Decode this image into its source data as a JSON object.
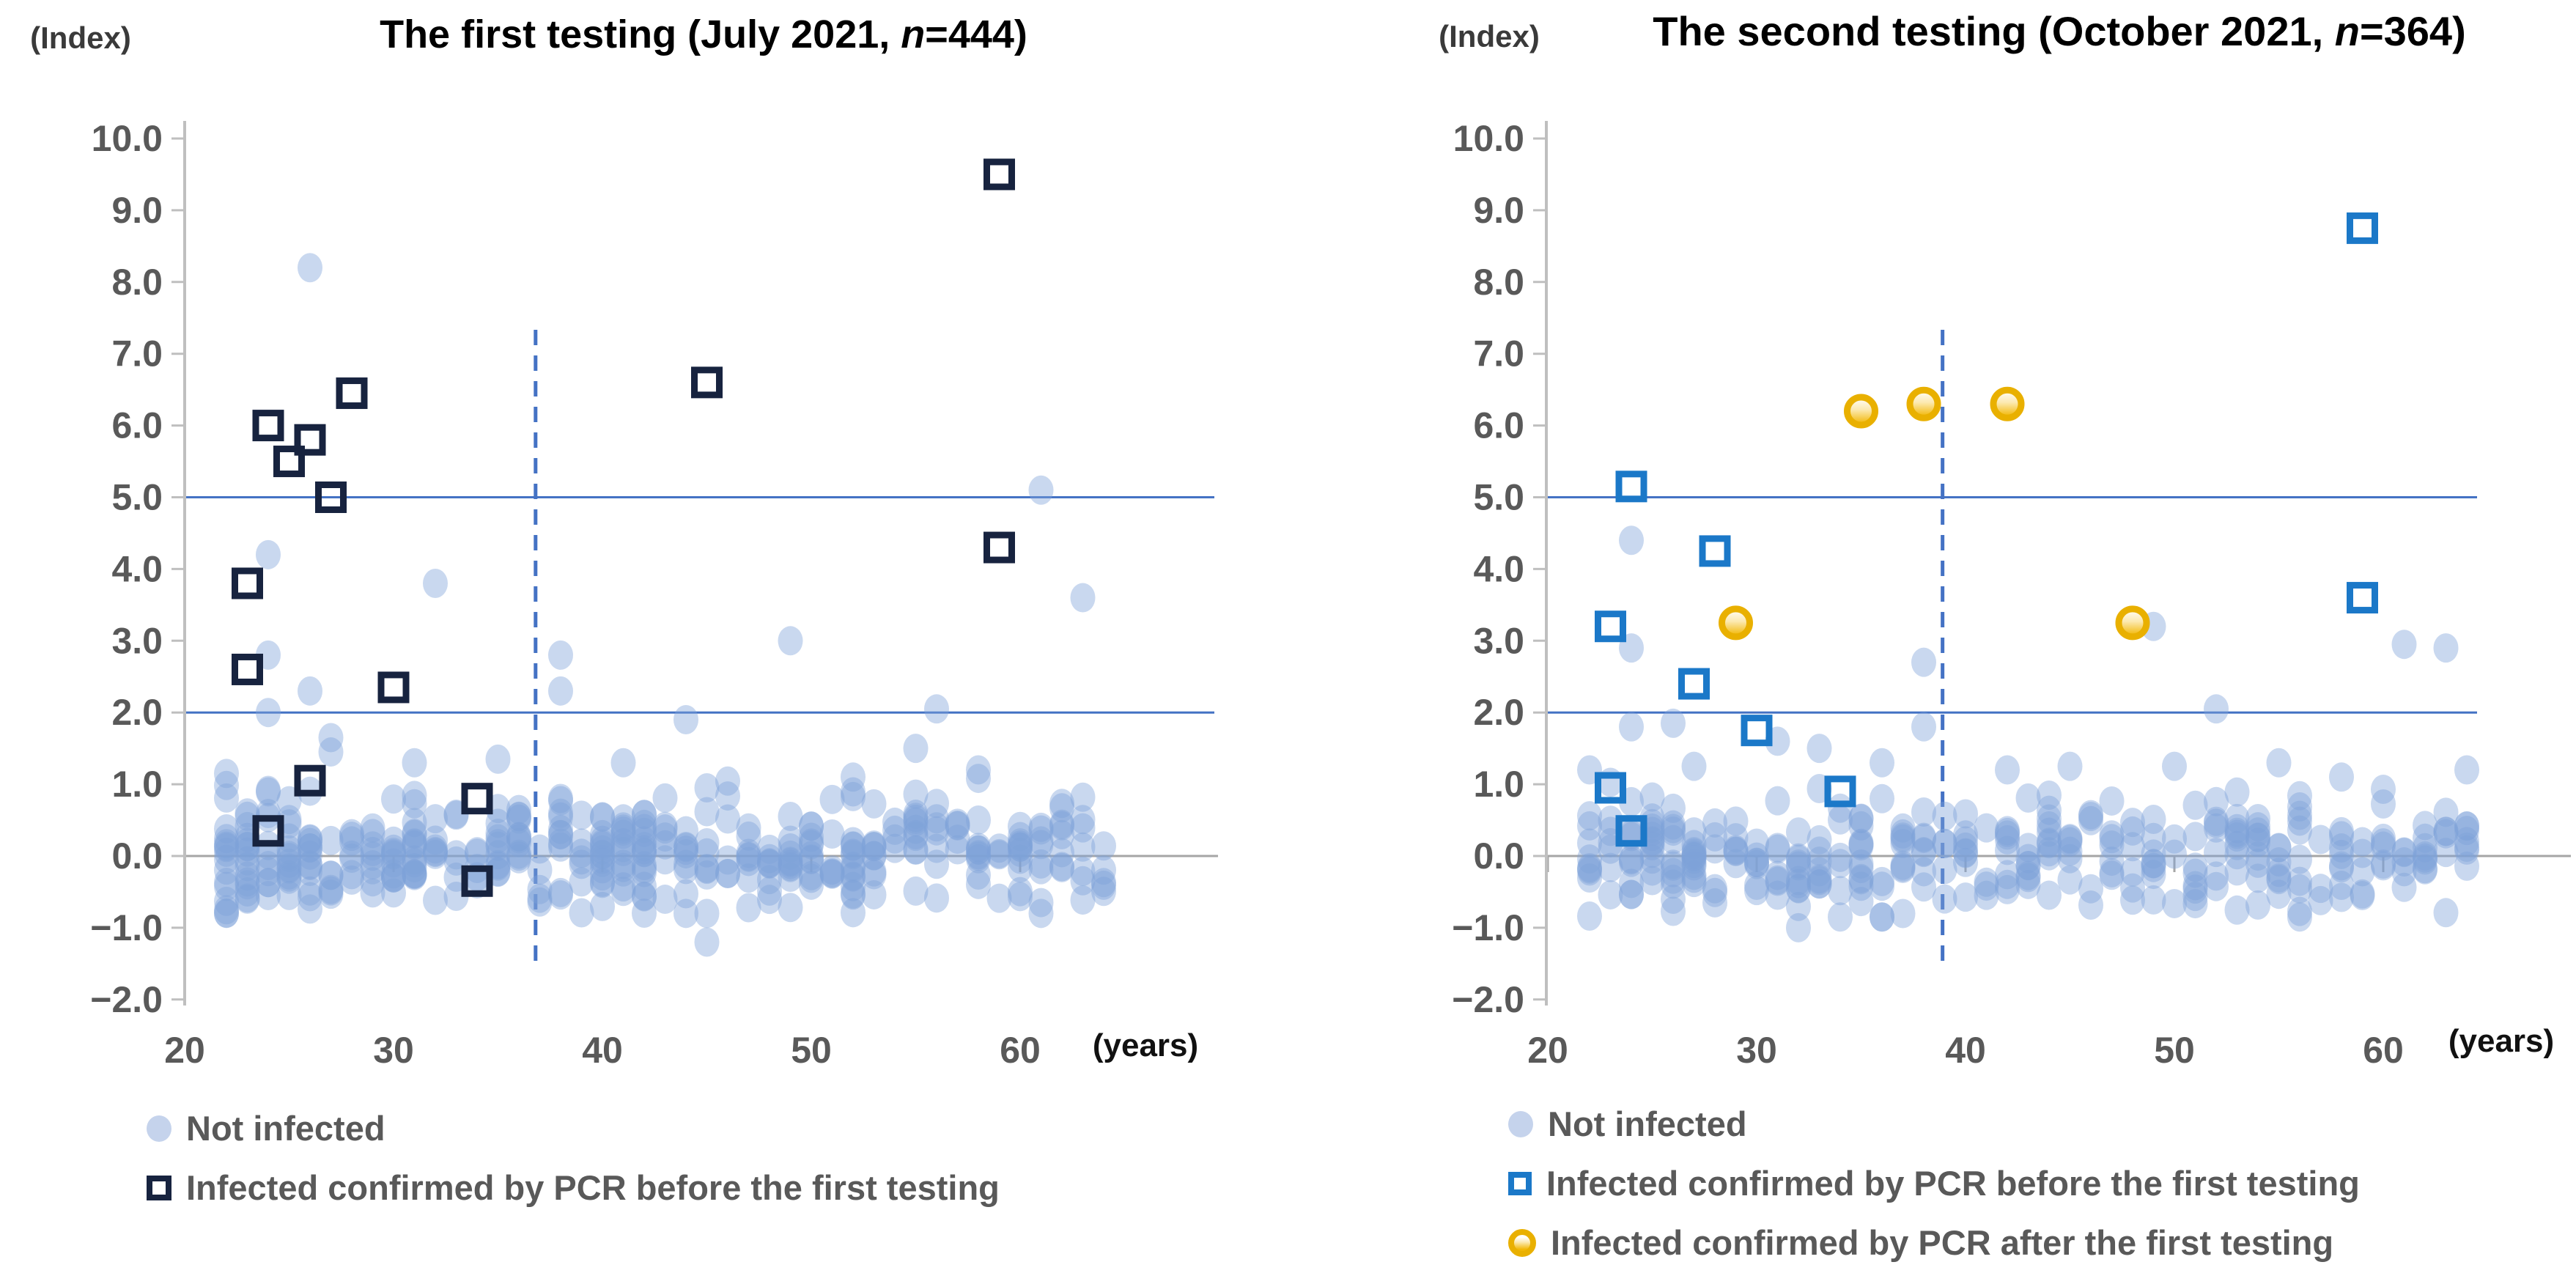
{
  "colors": {
    "not_infected_fill": "rgba(127,161,216,0.42)",
    "legend_circle_light": "#C5D3EC",
    "pcr_before_navy": "#17233F",
    "pcr_before_blue": "#1B78C8",
    "pcr_after_gold_ring": "#E9B000",
    "pcr_after_gold_fill": "#F2B705",
    "reference_line_blue": "#4472C4",
    "axis_gray": "#BFBFBF",
    "zero_line_gray": "#A6A6A6",
    "text_gray": "#595959"
  },
  "chart_data": [
    {
      "type": "scatter",
      "index_label": "(Index)",
      "title": {
        "pre": "The first testing (July 2021, ",
        "n": "n",
        "post": "=444)"
      },
      "n_total": 444,
      "xlabel": "(years)",
      "x_ticks": [
        20,
        30,
        40,
        50,
        60
      ],
      "y_tick_labels": [
        "10.0",
        "9.0",
        "8.0",
        "7.0",
        "6.0",
        "5.0",
        "4.0",
        "3.0",
        "2.0",
        "1.0",
        "0.0",
        "−1.0",
        "−2.0"
      ],
      "ylim": [
        -2.0,
        10.0
      ],
      "xlim": [
        20,
        69
      ],
      "grid": false,
      "ref_lines_y": [
        5.0,
        2.0
      ],
      "vline_x": 36.8,
      "series": {
        "not_infected": {
          "label": "Not infected",
          "points": [
            [
              26,
              8.2
            ],
            [
              61,
              5.1
            ],
            [
              24,
              4.2
            ],
            [
              32,
              3.8
            ],
            [
              63,
              3.6
            ],
            [
              49,
              3.0
            ],
            [
              24,
              2.8
            ],
            [
              38,
              2.8
            ],
            [
              26,
              2.3
            ],
            [
              38,
              2.3
            ],
            [
              56,
              2.05
            ],
            [
              24,
              2.0
            ],
            [
              44,
              1.9
            ],
            [
              27,
              1.65
            ],
            [
              55,
              1.5
            ],
            [
              27,
              1.45
            ],
            [
              35,
              1.35
            ],
            [
              31,
              1.3
            ],
            [
              41,
              1.3
            ],
            [
              58,
              1.2
            ],
            [
              22,
              1.15
            ],
            [
              52,
              1.1
            ],
            [
              45,
              -1.2
            ]
          ],
          "cluster": {
            "count": 406,
            "x_min": 21.5,
            "x_max": 64.5,
            "x_skew": 1.3,
            "y_mean": 0.05,
            "y_sd": 0.4,
            "y_min": -0.8,
            "y_max": 1.1,
            "seed": 7
          }
        },
        "pcr_before": {
          "label": "Infected confirmed by PCR before the first testing",
          "points": [
            [
              23,
              3.8
            ],
            [
              23,
              2.6
            ],
            [
              24,
              6.0
            ],
            [
              24,
              0.35
            ],
            [
              25,
              5.5
            ],
            [
              26,
              5.8
            ],
            [
              26,
              1.05
            ],
            [
              27,
              5.0
            ],
            [
              28,
              6.45
            ],
            [
              30,
              2.35
            ],
            [
              34,
              0.8
            ],
            [
              34,
              -0.35
            ],
            [
              45,
              6.6
            ],
            [
              59,
              9.5
            ],
            [
              59,
              4.3
            ]
          ]
        }
      },
      "legend": [
        {
          "marker": "circle-light",
          "label": "Not infected"
        },
        {
          "marker": "square-navy",
          "label": "Infected confirmed by PCR before the first testing"
        }
      ]
    },
    {
      "type": "scatter",
      "index_label": "(Index)",
      "title": {
        "pre": "The second testing (October 2021, ",
        "n": "n",
        "post": "=364)"
      },
      "n_total": 364,
      "xlabel": "(years)",
      "x_ticks": [
        20,
        30,
        40,
        50,
        60
      ],
      "y_tick_labels": [
        "10.0",
        "9.0",
        "8.0",
        "7.0",
        "6.0",
        "5.0",
        "4.0",
        "3.0",
        "2.0",
        "1.0",
        "0.0",
        "−1.0",
        "−2.0"
      ],
      "ylim": [
        -2.0,
        10.0
      ],
      "xlim": [
        20,
        69
      ],
      "grid": false,
      "ref_lines_y": [
        5.0,
        2.0
      ],
      "vline_x": 38.9,
      "series": {
        "not_infected": {
          "label": "Not infected",
          "points": [
            [
              24,
              4.4
            ],
            [
              49,
              3.2
            ],
            [
              61,
              2.95
            ],
            [
              63,
              2.9
            ],
            [
              24,
              2.9
            ],
            [
              38,
              2.7
            ],
            [
              52,
              2.05
            ],
            [
              26,
              1.85
            ],
            [
              24,
              1.8
            ],
            [
              38,
              1.8
            ],
            [
              31,
              1.6
            ],
            [
              33,
              1.5
            ],
            [
              36,
              1.3
            ],
            [
              22,
              1.2
            ],
            [
              27,
              1.25
            ],
            [
              42,
              1.2
            ],
            [
              45,
              1.25
            ],
            [
              50,
              1.25
            ],
            [
              55,
              1.3
            ],
            [
              58,
              1.1
            ],
            [
              64,
              1.2
            ],
            [
              61,
              0.05
            ],
            [
              63,
              0.05
            ],
            [
              32,
              -1.0
            ]
          ],
          "cluster": {
            "count": 325,
            "x_min": 21.5,
            "x_max": 64.5,
            "x_skew": 1.15,
            "y_mean": 0.0,
            "y_sd": 0.4,
            "y_min": -0.85,
            "y_max": 1.25,
            "seed": 13
          }
        },
        "pcr_before": {
          "label": "Infected confirmed by PCR before the first testing",
          "points": [
            [
              23,
              3.2
            ],
            [
              23,
              0.95
            ],
            [
              24,
              5.15
            ],
            [
              24,
              0.35
            ],
            [
              27,
              2.4
            ],
            [
              28,
              4.25
            ],
            [
              30,
              1.75
            ],
            [
              34,
              0.9
            ],
            [
              59,
              8.75
            ],
            [
              59,
              3.6
            ]
          ]
        },
        "pcr_after": {
          "label": "Infected confirmed by PCR after the first testing",
          "points": [
            [
              29,
              3.25
            ],
            [
              35,
              6.2
            ],
            [
              38,
              6.3
            ],
            [
              42,
              6.3
            ],
            [
              48,
              3.25
            ]
          ]
        }
      },
      "legend": [
        {
          "marker": "circle-light",
          "label": "Not infected"
        },
        {
          "marker": "square-blue",
          "label": "Infected confirmed by PCR before the first testing"
        },
        {
          "marker": "circle-gold",
          "label": "Infected confirmed by PCR after the first testing"
        }
      ]
    }
  ]
}
